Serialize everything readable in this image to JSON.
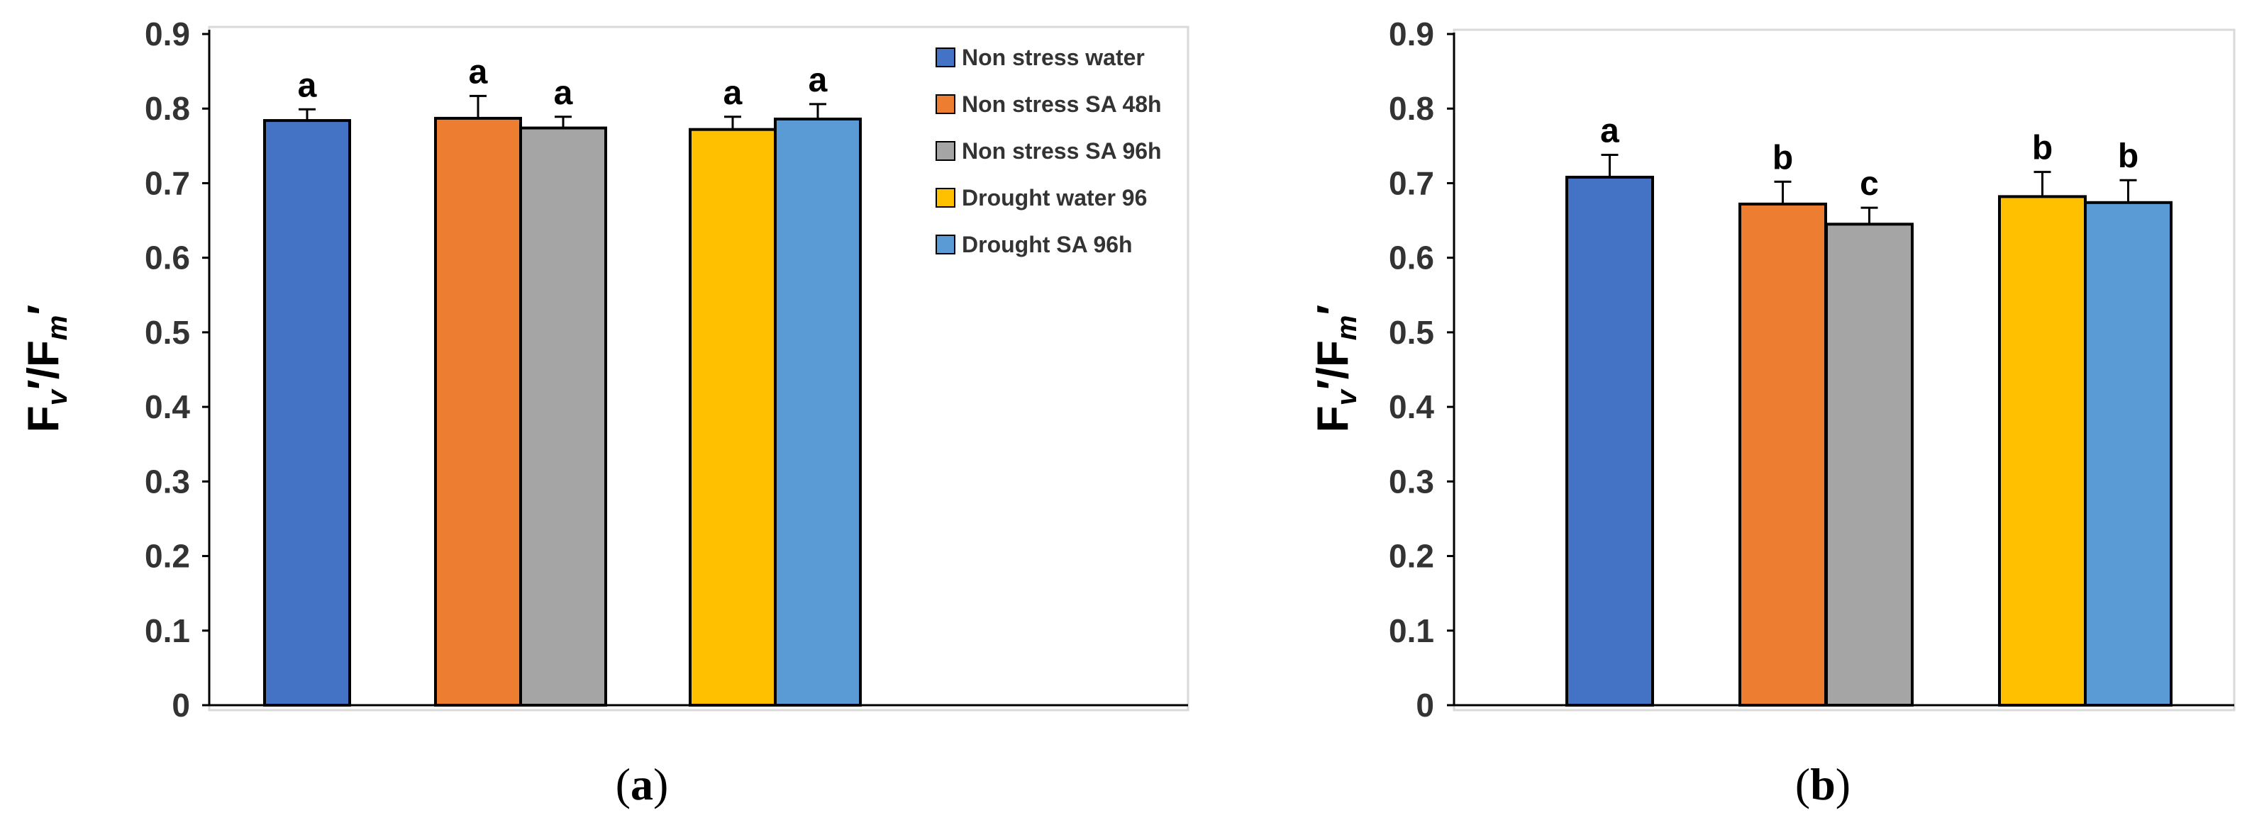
{
  "chart_data": [
    {
      "type": "bar",
      "panel_label": "a",
      "ylabel_main": "F",
      "ylabel_sub1": "v",
      "ylabel_prime1": "′/F",
      "ylabel_sub2": "m",
      "ylabel_prime2": "′",
      "ylim": [
        0,
        0.9
      ],
      "yticks": [
        "0",
        "0.1",
        "0.2",
        "0.3",
        "0.4",
        "0.5",
        "0.6",
        "0.7",
        "0.8",
        "0.9"
      ],
      "legend_position": "right",
      "legend": [
        "Non stress water",
        "Non stress SA 48h",
        "Non stress SA 96h",
        "Drought water 96",
        "Drought SA 96h"
      ],
      "series": [
        {
          "name": "Non stress water",
          "color": "#4472c4",
          "value": 0.784,
          "error": 0.015,
          "letter": "a"
        },
        {
          "name": "Non stress SA 48h",
          "color": "#ed7d31",
          "value": 0.787,
          "error": 0.03,
          "letter": "a"
        },
        {
          "name": "Non stress SA 96h",
          "color": "#a5a5a5",
          "value": 0.774,
          "error": 0.015,
          "letter": "a"
        },
        {
          "name": "Drought water 96",
          "color": "#ffc000",
          "value": 0.772,
          "error": 0.017,
          "letter": "a"
        },
        {
          "name": "Drought SA 96h",
          "color": "#5b9bd5",
          "value": 0.786,
          "error": 0.02,
          "letter": "a"
        }
      ]
    },
    {
      "type": "bar",
      "panel_label": "b",
      "ylabel_main": "F",
      "ylabel_sub1": "v",
      "ylabel_prime1": "′/F",
      "ylabel_sub2": "m",
      "ylabel_prime2": "′",
      "ylim": [
        0,
        0.9
      ],
      "yticks": [
        "0",
        "0.1",
        "0.2",
        "0.3",
        "0.4",
        "0.5",
        "0.6",
        "0.7",
        "0.8",
        "0.9"
      ],
      "series": [
        {
          "name": "Non stress water",
          "color": "#4472c4",
          "value": 0.708,
          "error": 0.03,
          "letter": "a"
        },
        {
          "name": "Non stress SA 48h",
          "color": "#ed7d31",
          "value": 0.672,
          "error": 0.03,
          "letter": "b"
        },
        {
          "name": "Non stress SA 96h",
          "color": "#a5a5a5",
          "value": 0.645,
          "error": 0.022,
          "letter": "c"
        },
        {
          "name": "Drought water 96",
          "color": "#ffc000",
          "value": 0.682,
          "error": 0.033,
          "letter": "b"
        },
        {
          "name": "Drought SA 96h",
          "color": "#5b9bd5",
          "value": 0.674,
          "error": 0.03,
          "letter": "b"
        }
      ]
    }
  ]
}
